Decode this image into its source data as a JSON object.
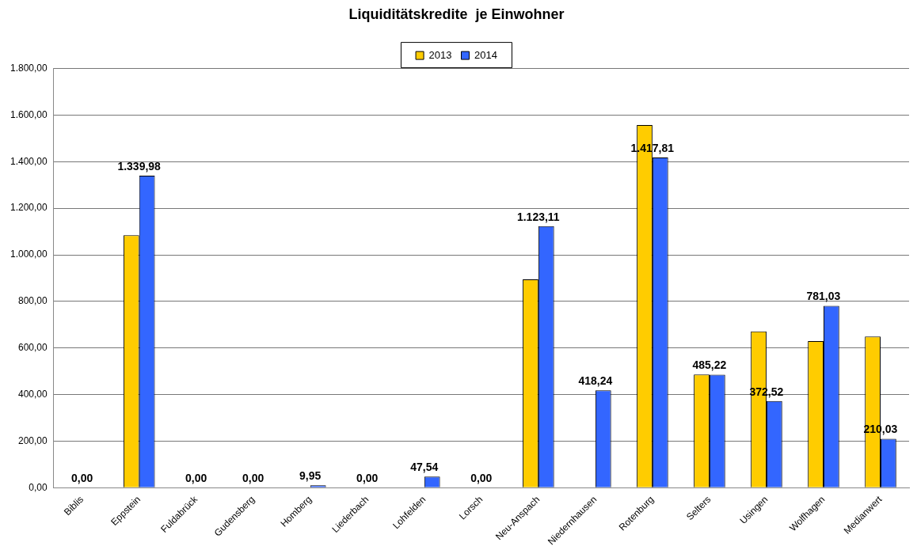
{
  "chart_data": {
    "type": "bar",
    "title": "Liquiditätskredite  je Einwohner",
    "categories": [
      "Biblis",
      "Eppstein",
      "Fuldabrück",
      "Gudensberg",
      "Homberg",
      "Liederbach",
      "Lohfelden",
      "Lorsch",
      "Neu-Anspach",
      "Niedernhausen",
      "Rotenburg",
      "Selters",
      "Usingen",
      "Wolfhagen",
      "Medianwert"
    ],
    "series": [
      {
        "name": "2013",
        "color": "#ffcc00",
        "values": [
          0,
          1084,
          0,
          0,
          0,
          0,
          0,
          0,
          895,
          0,
          1557,
          486,
          671,
          630,
          649
        ]
      },
      {
        "name": "2014",
        "color": "#3366ff",
        "values": [
          0,
          1339.98,
          0,
          0,
          9.95,
          0,
          47.54,
          0,
          1123.11,
          418.24,
          1417.81,
          485.22,
          372.52,
          781.03,
          210.03
        ],
        "value_labels": [
          "0,00",
          "1.339,98",
          "0,00",
          "0,00",
          "9,95",
          "0,00",
          "47,54",
          "0,00",
          "1.123,11",
          "418,24",
          "1.417,81",
          "485,22",
          "372,52",
          "781,03",
          "210,03"
        ]
      }
    ],
    "ylim": [
      0,
      1800
    ],
    "yticks": [
      {
        "value": 0,
        "label": "0,00"
      },
      {
        "value": 200,
        "label": "200,00"
      },
      {
        "value": 400,
        "label": "400,00"
      },
      {
        "value": 600,
        "label": "600,00"
      },
      {
        "value": 800,
        "label": "800,00"
      },
      {
        "value": 1000,
        "label": "1.000,00"
      },
      {
        "value": 1200,
        "label": "1.200,00"
      },
      {
        "value": 1400,
        "label": "1.400,00"
      },
      {
        "value": 1600,
        "label": "1.600,00"
      },
      {
        "value": 1800,
        "label": "1.800,00"
      }
    ],
    "grid": "y",
    "legend": "top"
  }
}
